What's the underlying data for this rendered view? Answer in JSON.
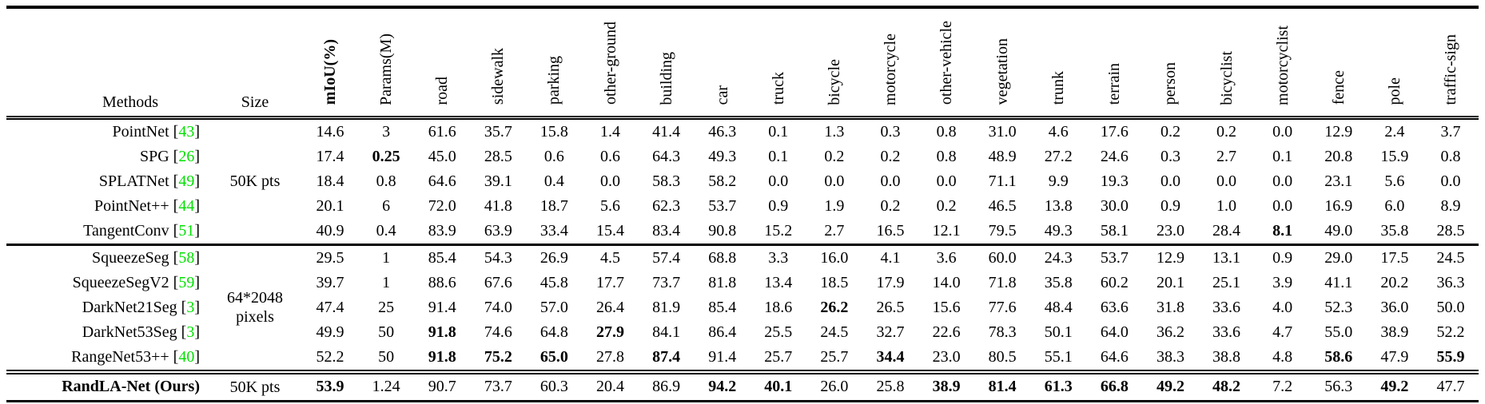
{
  "table": {
    "citation_color": "#00e000",
    "header": {
      "methods_label": "Methods",
      "size_label": "Size",
      "columns": [
        {
          "label": "mIoU(%)",
          "bold": true
        },
        {
          "label": "Params(M)"
        },
        {
          "label": "road"
        },
        {
          "label": "sidewalk"
        },
        {
          "label": "parking"
        },
        {
          "label": "other-ground"
        },
        {
          "label": "building"
        },
        {
          "label": "car"
        },
        {
          "label": "truck"
        },
        {
          "label": "bicycle"
        },
        {
          "label": "motorcycle"
        },
        {
          "label": "other-vehicle"
        },
        {
          "label": "vegetation"
        },
        {
          "label": "trunk"
        },
        {
          "label": "terrain"
        },
        {
          "label": "person"
        },
        {
          "label": "bicyclist"
        },
        {
          "label": "motorcyclist"
        },
        {
          "label": "fence"
        },
        {
          "label": "pole"
        },
        {
          "label": "traffic-sign"
        }
      ]
    },
    "groups": [
      {
        "size": "50K pts",
        "rows": [
          {
            "method": "PointNet",
            "cite": "43",
            "method_bold": false,
            "bold_cols": [],
            "values": [
              "14.6",
              "3",
              "61.6",
              "35.7",
              "15.8",
              "1.4",
              "41.4",
              "46.3",
              "0.1",
              "1.3",
              "0.3",
              "0.8",
              "31.0",
              "4.6",
              "17.6",
              "0.2",
              "0.2",
              "0.0",
              "12.9",
              "2.4",
              "3.7"
            ]
          },
          {
            "method": "SPG",
            "cite": "26",
            "method_bold": false,
            "bold_cols": [
              1
            ],
            "values": [
              "17.4",
              "0.25",
              "45.0",
              "28.5",
              "0.6",
              "0.6",
              "64.3",
              "49.3",
              "0.1",
              "0.2",
              "0.2",
              "0.8",
              "48.9",
              "27.2",
              "24.6",
              "0.3",
              "2.7",
              "0.1",
              "20.8",
              "15.9",
              "0.8"
            ]
          },
          {
            "method": "SPLATNet",
            "cite": "49",
            "method_bold": false,
            "bold_cols": [],
            "values": [
              "18.4",
              "0.8",
              "64.6",
              "39.1",
              "0.4",
              "0.0",
              "58.3",
              "58.2",
              "0.0",
              "0.0",
              "0.0",
              "0.0",
              "71.1",
              "9.9",
              "19.3",
              "0.0",
              "0.0",
              "0.0",
              "23.1",
              "5.6",
              "0.0"
            ]
          },
          {
            "method": "PointNet++",
            "cite": "44",
            "method_bold": false,
            "bold_cols": [],
            "values": [
              "20.1",
              "6",
              "72.0",
              "41.8",
              "18.7",
              "5.6",
              "62.3",
              "53.7",
              "0.9",
              "1.9",
              "0.2",
              "0.2",
              "46.5",
              "13.8",
              "30.0",
              "0.9",
              "1.0",
              "0.0",
              "16.9",
              "6.0",
              "8.9"
            ]
          },
          {
            "method": "TangentConv",
            "cite": "51",
            "method_bold": false,
            "bold_cols": [
              17
            ],
            "values": [
              "40.9",
              "0.4",
              "83.9",
              "63.9",
              "33.4",
              "15.4",
              "83.4",
              "90.8",
              "15.2",
              "2.7",
              "16.5",
              "12.1",
              "79.5",
              "49.3",
              "58.1",
              "23.0",
              "28.4",
              "8.1",
              "49.0",
              "35.8",
              "28.5"
            ]
          }
        ]
      },
      {
        "size": "64*2048 pixels",
        "rows": [
          {
            "method": "SqueezeSeg",
            "cite": "58",
            "method_bold": false,
            "bold_cols": [],
            "values": [
              "29.5",
              "1",
              "85.4",
              "54.3",
              "26.9",
              "4.5",
              "57.4",
              "68.8",
              "3.3",
              "16.0",
              "4.1",
              "3.6",
              "60.0",
              "24.3",
              "53.7",
              "12.9",
              "13.1",
              "0.9",
              "29.0",
              "17.5",
              "24.5"
            ]
          },
          {
            "method": "SqueezeSegV2",
            "cite": "59",
            "method_bold": false,
            "bold_cols": [],
            "values": [
              "39.7",
              "1",
              "88.6",
              "67.6",
              "45.8",
              "17.7",
              "73.7",
              "81.8",
              "13.4",
              "18.5",
              "17.9",
              "14.0",
              "71.8",
              "35.8",
              "60.2",
              "20.1",
              "25.1",
              "3.9",
              "41.1",
              "20.2",
              "36.3"
            ]
          },
          {
            "method": "DarkNet21Seg",
            "cite": "3",
            "method_bold": false,
            "bold_cols": [
              9
            ],
            "values": [
              "47.4",
              "25",
              "91.4",
              "74.0",
              "57.0",
              "26.4",
              "81.9",
              "85.4",
              "18.6",
              "26.2",
              "26.5",
              "15.6",
              "77.6",
              "48.4",
              "63.6",
              "31.8",
              "33.6",
              "4.0",
              "52.3",
              "36.0",
              "50.0"
            ]
          },
          {
            "method": "DarkNet53Seg",
            "cite": "3",
            "method_bold": false,
            "bold_cols": [
              2,
              5
            ],
            "values": [
              "49.9",
              "50",
              "91.8",
              "74.6",
              "64.8",
              "27.9",
              "84.1",
              "86.4",
              "25.5",
              "24.5",
              "32.7",
              "22.6",
              "78.3",
              "50.1",
              "64.0",
              "36.2",
              "33.6",
              "4.7",
              "55.0",
              "38.9",
              "52.2"
            ]
          },
          {
            "method": "RangeNet53++",
            "cite": "40",
            "method_bold": false,
            "bold_cols": [
              2,
              3,
              4,
              6,
              10,
              18,
              20
            ],
            "values": [
              "52.2",
              "50",
              "91.8",
              "75.2",
              "65.0",
              "27.8",
              "87.4",
              "91.4",
              "25.7",
              "25.7",
              "34.4",
              "23.0",
              "80.5",
              "55.1",
              "64.6",
              "38.3",
              "38.8",
              "4.8",
              "58.6",
              "47.9",
              "55.9"
            ]
          }
        ]
      },
      {
        "size": "50K pts",
        "rows": [
          {
            "method": "RandLA-Net (Ours)",
            "cite": null,
            "method_bold": true,
            "bold_cols": [
              0,
              7,
              8,
              11,
              12,
              13,
              14,
              15,
              16,
              19
            ],
            "values": [
              "53.9",
              "1.24",
              "90.7",
              "73.7",
              "60.3",
              "20.4",
              "86.9",
              "94.2",
              "40.1",
              "26.0",
              "25.8",
              "38.9",
              "81.4",
              "61.3",
              "66.8",
              "49.2",
              "48.2",
              "7.2",
              "56.3",
              "49.2",
              "47.7"
            ]
          }
        ]
      }
    ]
  }
}
